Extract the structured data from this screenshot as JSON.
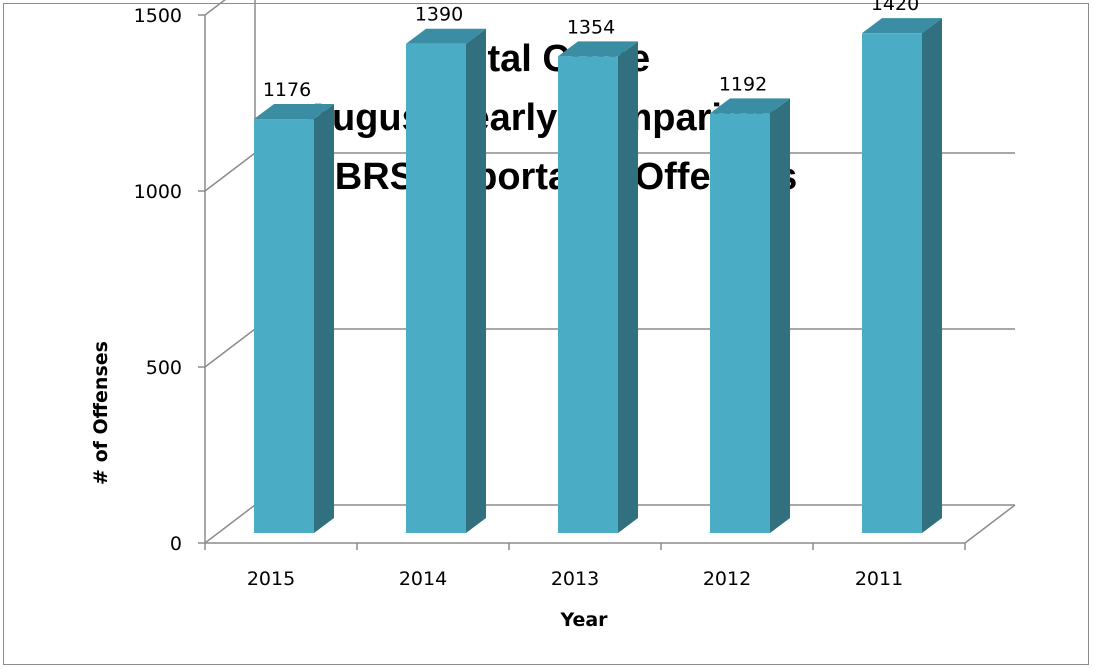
{
  "chart_data": {
    "type": "bar",
    "style": "3d-column",
    "title": [
      "Total Crime",
      "August Yearly Comparison",
      "NIBRS Reportable Offenses"
    ],
    "categories": [
      "2015",
      "2014",
      "2013",
      "2012",
      "2011"
    ],
    "series": [
      {
        "values": [
          1176,
          1390,
          1354,
          1192,
          1420
        ]
      }
    ],
    "data_labels": [
      "1176",
      "1390",
      "1354",
      "1192",
      "1420"
    ],
    "xlabel": "Year",
    "ylabel": "# of Offenses",
    "ylim": [
      0,
      1500
    ],
    "yticks": [
      "0",
      "500",
      "1000",
      "1500"
    ],
    "grid": true,
    "legend": "none",
    "colors": {
      "bar_front": "#4BACC6",
      "bar_side": "#31707F",
      "bar_top": "#3A8DA2",
      "grid": "#8c8c8c",
      "frame": "#8c8c8c"
    }
  }
}
